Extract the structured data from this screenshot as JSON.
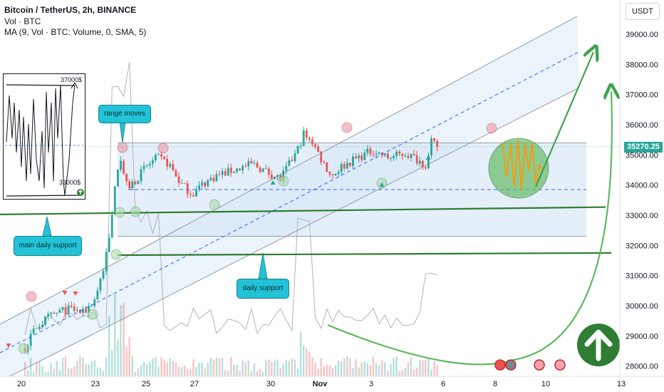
{
  "header": {
    "title": "Bitcoin / TetherUS, 2h, BINANCE",
    "line2": "Vol · BTC",
    "line3": "MA (9, Vol · BTC: Volume, 0, SMA, 5)"
  },
  "currency_button": "USDT",
  "current_price": "35270.25",
  "callouts": {
    "range_moves": "range moves",
    "main_daily_support": "main daily support",
    "daily_support": "daily support"
  },
  "inset": {
    "top_label": "37000$",
    "bottom_label": "33000$"
  },
  "colors": {
    "up": "#26a69a",
    "down": "#ef5350",
    "support": "#2e7d32",
    "channel": "#7a8591",
    "arrow": "#3fa34d",
    "projection": "#f39c12",
    "callout": "#22c3d6"
  },
  "chart_data": {
    "type": "candlestick",
    "title": "Bitcoin / TetherUS, 2h, BINANCE",
    "xlabel": "",
    "ylabel": "",
    "x_ticks": [
      "20",
      "23",
      "25",
      "27",
      "30",
      "Nov",
      "3",
      "6",
      "8",
      "10",
      "13"
    ],
    "y_ticks": [
      39000,
      38000,
      37000,
      36000,
      35000,
      34000,
      33000,
      32000,
      31000,
      30000,
      29000,
      28000
    ],
    "ylim": [
      27800,
      39800
    ],
    "current_price": 35270.25,
    "support_levels": [
      {
        "name": "main daily support",
        "price": 33050
      },
      {
        "name": "daily support",
        "price": 31700
      }
    ],
    "range": {
      "top": 35400,
      "mid": 33850
    },
    "price_path": [
      [
        20,
        28600
      ],
      [
        20.5,
        29300
      ],
      [
        21,
        29600
      ],
      [
        21.5,
        29800
      ],
      [
        22,
        29900
      ],
      [
        22.5,
        29750
      ],
      [
        23,
        30200
      ],
      [
        23.4,
        31300
      ],
      [
        23.7,
        32500
      ],
      [
        23.9,
        34300
      ],
      [
        24.1,
        34900
      ],
      [
        24.4,
        33900
      ],
      [
        24.8,
        34200
      ],
      [
        25.2,
        34600
      ],
      [
        25.7,
        34900
      ],
      [
        26.2,
        34700
      ],
      [
        26.7,
        34050
      ],
      [
        27.2,
        33700
      ],
      [
        27.6,
        34000
      ],
      [
        28.2,
        34300
      ],
      [
        29,
        34500
      ],
      [
        29.8,
        34700
      ],
      [
        30.5,
        34400
      ],
      [
        31,
        34200
      ],
      [
        31.3,
        34600
      ],
      [
        31.7,
        35100
      ],
      [
        32,
        35700
      ],
      [
        32.4,
        35400
      ],
      [
        32.8,
        34800
      ],
      [
        33.2,
        34300
      ],
      [
        33.6,
        34600
      ],
      [
        34.3,
        34900
      ],
      [
        35,
        35150
      ],
      [
        35.6,
        34900
      ],
      [
        36.4,
        35050
      ],
      [
        37,
        34800
      ],
      [
        37.3,
        34650
      ],
      [
        37.5,
        35400
      ],
      [
        37.8,
        35270
      ]
    ],
    "volume_ma": "MA (9, Vol · BTC: Volume, 0, SMA, 5)"
  }
}
